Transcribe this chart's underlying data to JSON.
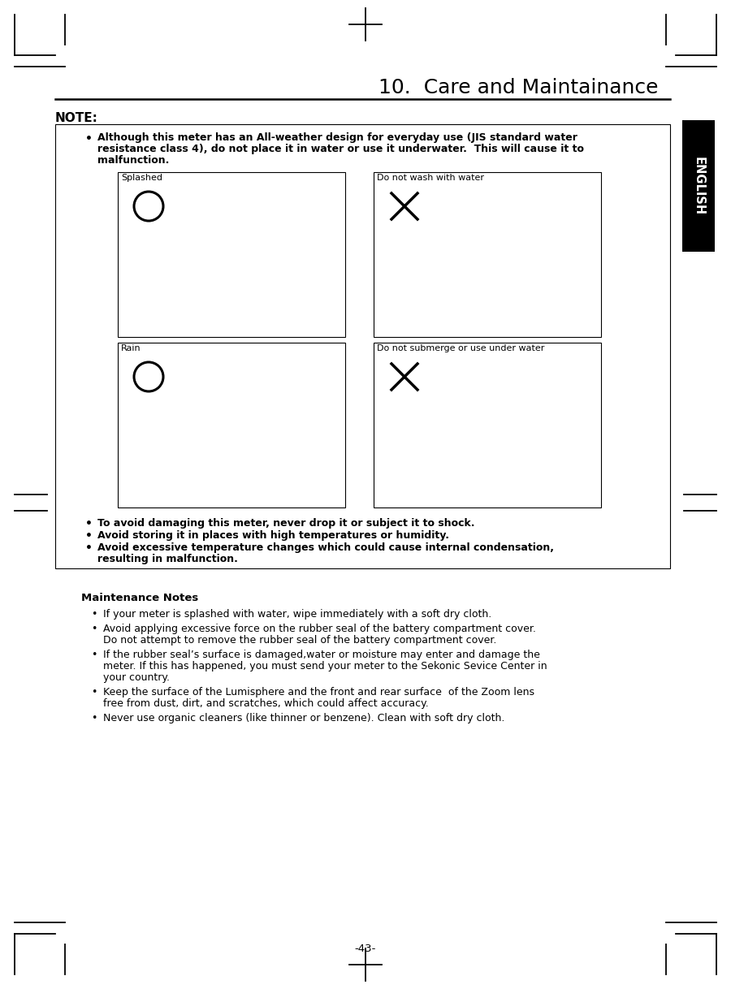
{
  "page_title": "10.  Care and Maintainance",
  "page_number": "-43-",
  "section_label": "ENGLISH",
  "note_label": "NOTE:",
  "note_bullet1_line1": "Although this meter has an All-weather design for everyday use (JIS standard water",
  "note_bullet1_line2": "resistance class 4), do not place it in water or use it underwater.  This will cause it to",
  "note_bullet1_line3": "malfunction.",
  "img_label_1": "Splashed",
  "img_label_2": "Do not wash with water",
  "img_label_3": "Rain",
  "img_label_4": "Do not submerge or use under water",
  "note_bullet2": "To avoid damaging this meter, never drop it or subject it to shock.",
  "note_bullet3": "Avoid storing it in places with high temperatures or humidity.",
  "note_bullet4_line1": "Avoid excessive temperature changes which could cause internal condensation,",
  "note_bullet4_line2": "resulting in malfunction.",
  "maint_title": "Maintenance Notes",
  "maint_bullet1": "If your meter is splashed with water, wipe immediately with a soft dry cloth.",
  "maint_bullet2_line1": "Avoid applying excessive force on the rubber seal of the battery compartment cover.",
  "maint_bullet2_line2": "Do not attempt to remove the rubber seal of the battery compartment cover.",
  "maint_bullet3_line1": "If the rubber seal’s surface is damaged,water or moisture may enter and damage the",
  "maint_bullet3_line2": "meter. If this has happened, you must send your meter to the Sekonic Sevice Center in",
  "maint_bullet3_line3": "your country.",
  "maint_bullet4_line1": "Keep the surface of the Lumisphere and the front and rear surface  of the Zoom lens",
  "maint_bullet4_line2": "free from dust, dirt, and scratches, which could affect accuracy.",
  "maint_bullet5": "Never use organic cleaners (like thinner or benzene). Clean with soft dry cloth.",
  "bg_color": "#ffffff",
  "text_color": "#000000",
  "english_tab_color": "#000000",
  "english_tab_text": "#ffffff"
}
